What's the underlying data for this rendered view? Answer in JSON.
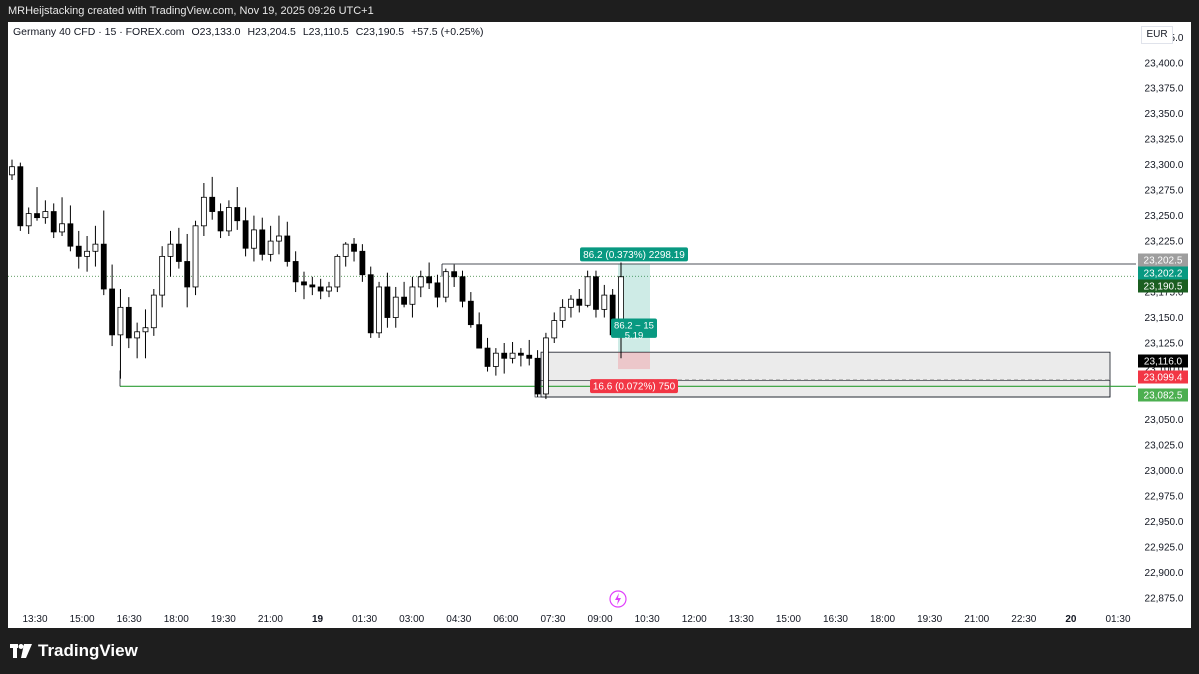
{
  "header": {
    "caption": "MRHeijstacking created with TradingView.com, Nov 19, 2025 09:26 UTC+1"
  },
  "symbol": {
    "name": "Germany 40 CFD · 15 · FOREX.com",
    "open": "O23,133.0",
    "high": "H23,204.5",
    "low": "L23,110.5",
    "close": "C23,190.5",
    "change": "+57.5 (+0.25%)"
  },
  "currency": "EUR",
  "brand": {
    "name": "TradingView"
  },
  "colors": {
    "up": "#ffffff",
    "down": "#000000",
    "green": "#089981",
    "red": "#f23645",
    "level_green": "#2e9e36"
  },
  "chart_data": {
    "type": "candlestick",
    "y_axis": {
      "ticks": [
        23425,
        23400,
        23375,
        23350,
        23325,
        23300,
        23275,
        23250,
        23225,
        23200,
        23175,
        23150,
        23125,
        23100,
        23075,
        23050,
        23025,
        23000,
        22975,
        22950,
        22925,
        22900,
        22875
      ],
      "tick_labels": [
        "23,425.0",
        "23,400.0",
        "23,375.0",
        "23,350.0",
        "23,325.0",
        "23,300.0",
        "23,275.0",
        "23,250.0",
        "23,225.0",
        "23,200.0",
        "23,175.0",
        "23,150.0",
        "23,125.0",
        "23,100.0",
        "23,075.0",
        "23,050.0",
        "23,025.0",
        "23,000.0",
        "22,975.0",
        "22,950.0",
        "22,925.0",
        "22,900.0",
        "22,875.0"
      ],
      "range": [
        22863,
        23440
      ]
    },
    "x_axis": {
      "tick_labels": [
        "13:30",
        "15:00",
        "16:30",
        "18:00",
        "19:30",
        "21:00",
        "19",
        "01:30",
        "03:00",
        "04:30",
        "06:00",
        "07:30",
        "09:00",
        "10:30",
        "12:00",
        "13:30",
        "15:00",
        "16:30",
        "18:00",
        "19:30",
        "21:00",
        "22:30",
        "20",
        "01:30"
      ],
      "bold_labels": [
        "19",
        "20"
      ]
    },
    "candles": [
      [
        23290,
        23305,
        23285,
        23298
      ],
      [
        23298,
        23302,
        23235,
        23240
      ],
      [
        23240,
        23258,
        23232,
        23252
      ],
      [
        23252,
        23278,
        23245,
        23248
      ],
      [
        23248,
        23265,
        23242,
        23254
      ],
      [
        23254,
        23262,
        23228,
        23234
      ],
      [
        23234,
        23268,
        23230,
        23242
      ],
      [
        23242,
        23260,
        23215,
        23220
      ],
      [
        23220,
        23235,
        23198,
        23210
      ],
      [
        23210,
        23230,
        23195,
        23215
      ],
      [
        23215,
        23240,
        23200,
        23222
      ],
      [
        23222,
        23255,
        23172,
        23178
      ],
      [
        23178,
        23202,
        23122,
        23133
      ],
      [
        23133,
        23178,
        23090,
        23160
      ],
      [
        23160,
        23170,
        23120,
        23130
      ],
      [
        23130,
        23145,
        23110,
        23136
      ],
      [
        23136,
        23158,
        23110,
        23140
      ],
      [
        23140,
        23178,
        23132,
        23172
      ],
      [
        23172,
        23220,
        23160,
        23210
      ],
      [
        23210,
        23235,
        23190,
        23222
      ],
      [
        23222,
        23238,
        23198,
        23205
      ],
      [
        23205,
        23232,
        23160,
        23180
      ],
      [
        23180,
        23245,
        23172,
        23240
      ],
      [
        23240,
        23282,
        23230,
        23268
      ],
      [
        23268,
        23288,
        23246,
        23254
      ],
      [
        23254,
        23262,
        23228,
        23235
      ],
      [
        23235,
        23265,
        23230,
        23258
      ],
      [
        23258,
        23278,
        23236,
        23245
      ],
      [
        23245,
        23258,
        23210,
        23218
      ],
      [
        23218,
        23250,
        23205,
        23236
      ],
      [
        23236,
        23248,
        23206,
        23212
      ],
      [
        23212,
        23240,
        23205,
        23225
      ],
      [
        23225,
        23250,
        23212,
        23230
      ],
      [
        23230,
        23244,
        23200,
        23205
      ],
      [
        23205,
        23215,
        23175,
        23185
      ],
      [
        23185,
        23195,
        23168,
        23182
      ],
      [
        23182,
        23190,
        23172,
        23180
      ],
      [
        23180,
        23188,
        23168,
        23176
      ],
      [
        23176,
        23185,
        23170,
        23180
      ],
      [
        23180,
        23212,
        23175,
        23210
      ],
      [
        23210,
        23224,
        23200,
        23222
      ],
      [
        23222,
        23228,
        23205,
        23215
      ],
      [
        23215,
        23222,
        23185,
        23192
      ],
      [
        23192,
        23200,
        23130,
        23135
      ],
      [
        23135,
        23185,
        23130,
        23180
      ],
      [
        23180,
        23194,
        23140,
        23150
      ],
      [
        23150,
        23180,
        23140,
        23170
      ],
      [
        23170,
        23185,
        23160,
        23163
      ],
      [
        23163,
        23190,
        23150,
        23180
      ],
      [
        23180,
        23196,
        23170,
        23190
      ],
      [
        23190,
        23204,
        23178,
        23184
      ],
      [
        23184,
        23192,
        23160,
        23170
      ],
      [
        23170,
        23198,
        23165,
        23195
      ],
      [
        23195,
        23202,
        23180,
        23190
      ],
      [
        23190,
        23196,
        23160,
        23166
      ],
      [
        23166,
        23175,
        23140,
        23143
      ],
      [
        23143,
        23155,
        23120,
        23120
      ],
      [
        23120,
        23130,
        23097,
        23102
      ],
      [
        23102,
        23120,
        23093,
        23115
      ],
      [
        23115,
        23125,
        23095,
        23110
      ],
      [
        23110,
        23126,
        23105,
        23115
      ],
      [
        23115,
        23120,
        23102,
        23113
      ],
      [
        23113,
        23128,
        23103,
        23110
      ],
      [
        23110,
        23118,
        23072,
        23075
      ],
      [
        23075,
        23135,
        23070,
        23130
      ],
      [
        23130,
        23155,
        23125,
        23147
      ],
      [
        23147,
        23168,
        23140,
        23160
      ],
      [
        23160,
        23172,
        23150,
        23168
      ],
      [
        23168,
        23178,
        23155,
        23162
      ],
      [
        23162,
        23196,
        23160,
        23190
      ],
      [
        23190,
        23196,
        23150,
        23158
      ],
      [
        23158,
        23182,
        23150,
        23172
      ],
      [
        23172,
        23178,
        23132,
        23133
      ],
      [
        23133,
        23204,
        23110,
        23190
      ]
    ],
    "price_labels": [
      {
        "value": "23,202.5",
        "bg": "#9e9e9e",
        "fg": "#ffffff"
      },
      {
        "value": "23,202.2",
        "bg": "#089981",
        "fg": "#ffffff"
      },
      {
        "value": "23,190.5",
        "bg": "#1b5e20",
        "fg": "#ffffff"
      },
      {
        "value": "23,116.0",
        "bg": "#000000",
        "fg": "#ffffff"
      },
      {
        "value": "23,099.4",
        "bg": "#f23645",
        "fg": "#ffffff"
      },
      {
        "value": "23,082.5",
        "bg": "#4caf50",
        "fg": "#ffffff"
      }
    ],
    "position": {
      "entry": 23116.0,
      "target": 23202.2,
      "stop": 23099.4,
      "target_label": "86.2 (0.373%) 2298.19",
      "stop_label": "16.6 (0.072%) 750",
      "center_label_1": "86.2 ~ 15",
      "center_label_2": "5.19"
    },
    "levels": {
      "resistance": 23202.5,
      "support": 23082.5,
      "current": 23190.5,
      "range_box": {
        "top": 23116.0,
        "bottom": 23072.0
      }
    }
  }
}
